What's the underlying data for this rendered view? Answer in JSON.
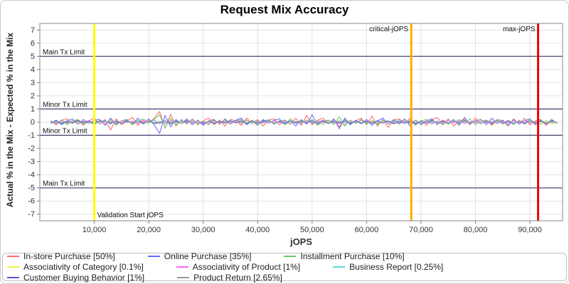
{
  "title": "Request Mix Accuracy",
  "chart_data": {
    "type": "line",
    "title": "Request Mix Accuracy",
    "xlabel": "jOPS",
    "ylabel": "Actual % in the Mix - Expected % in the Mix",
    "xlim": [
      0,
      96000
    ],
    "ylim": [
      -7.5,
      7.5
    ],
    "grid": true,
    "legend_position": "bottom",
    "x_ticks": [
      10000,
      20000,
      30000,
      40000,
      50000,
      60000,
      70000,
      80000,
      90000
    ],
    "y_ticks": [
      -7,
      -6,
      -5,
      -4,
      -3,
      -2,
      -1,
      0,
      1,
      2,
      3,
      4,
      5,
      6,
      7
    ],
    "h_markers": [
      {
        "label": "Main Tx Limit",
        "y": 5,
        "color": "#3b3b6b"
      },
      {
        "label": "Minor Tx Limit",
        "y": 1,
        "color": "#3b3b6b"
      },
      {
        "label": "Minor Tx Limit",
        "y": -1,
        "color": "#3b3b6b"
      },
      {
        "label": "Main Tx Limit",
        "y": -5,
        "color": "#3b3b6b"
      }
    ],
    "v_markers": [
      {
        "label": "Validation Start jOPS",
        "x": 10000,
        "color": "#ffff00",
        "label_pos": "bottom-right"
      },
      {
        "label": "critical-jOPS",
        "x": 68200,
        "color": "#ffaa00",
        "label_pos": "top-left"
      },
      {
        "label": "max-jOPS",
        "x": 91500,
        "color": "#ee0000",
        "label_pos": "top-left"
      }
    ],
    "x": [
      2000,
      3000,
      4000,
      5000,
      6000,
      7000,
      8000,
      9000,
      10000,
      11000,
      12000,
      13000,
      14000,
      15000,
      16000,
      17000,
      18000,
      19000,
      20000,
      21000,
      22000,
      23000,
      24000,
      25000,
      26000,
      27000,
      28000,
      29000,
      30000,
      31000,
      32000,
      33000,
      34000,
      35000,
      36000,
      37000,
      38000,
      39000,
      40000,
      41000,
      42000,
      43000,
      44000,
      45000,
      46000,
      47000,
      48000,
      49000,
      50000,
      51000,
      52000,
      53000,
      54000,
      55000,
      56000,
      57000,
      58000,
      59000,
      60000,
      61000,
      62000,
      63000,
      64000,
      65000,
      66000,
      67000,
      68000,
      69000,
      70000,
      71000,
      72000,
      73000,
      74000,
      75000,
      76000,
      77000,
      78000,
      79000,
      80000,
      81000,
      82000,
      83000,
      84000,
      85000,
      86000,
      87000,
      88000,
      89000,
      90000,
      91000,
      92000,
      93000,
      94000,
      95000
    ],
    "series": [
      {
        "name": "In-store Purchase [50%]",
        "color": "#ff6666",
        "values": [
          0.1,
          -0.2,
          0.15,
          0.25,
          -0.1,
          0.2,
          -0.25,
          0.1,
          0.3,
          -0.15,
          0.2,
          -0.6,
          0.25,
          -0.2,
          0.1,
          0.35,
          -0.25,
          0.15,
          -0.1,
          0.3,
          0.8,
          -0.45,
          0.6,
          -0.3,
          0.2,
          -0.15,
          0.25,
          -0.2,
          0.1,
          0.3,
          -0.2,
          0.15,
          -0.3,
          0.2,
          0.1,
          -0.25,
          0.3,
          -0.1,
          0.2,
          -0.3,
          0.15,
          0.25,
          -0.2,
          0.1,
          -0.15,
          0.3,
          -0.25,
          0.5,
          -0.2,
          0.15,
          0.3,
          -0.1,
          0.2,
          -0.35,
          0.25,
          -0.15,
          0.1,
          0.3,
          -0.2,
          0.45,
          -0.3,
          0.2,
          -0.4,
          0.15,
          0.25,
          -0.1,
          0.3,
          -0.2,
          0.1,
          -0.25,
          0.2,
          0.35,
          -0.15,
          0.25,
          -0.3,
          0.1,
          0.2,
          -0.2,
          0.3,
          -0.1,
          0.15,
          -0.25,
          0.2,
          0.1,
          -0.3,
          0.25,
          -0.15,
          0.3,
          -0.2,
          0.1,
          0.2,
          -0.25,
          0.15,
          -0.1
        ]
      },
      {
        "name": "Online Purchase [35%]",
        "color": "#6666ff",
        "values": [
          -0.1,
          0.15,
          -0.2,
          0.1,
          0.25,
          -0.15,
          0.2,
          -0.1,
          0.15,
          0.2,
          -0.25,
          0.3,
          -0.15,
          0.1,
          0.2,
          -0.2,
          0.3,
          -0.1,
          0.25,
          -0.2,
          -0.85,
          0.5,
          -0.35,
          0.2,
          -0.1,
          0.25,
          -0.2,
          0.15,
          -0.25,
          0.1,
          0.2,
          -0.15,
          0.25,
          -0.1,
          0.15,
          0.3,
          -0.2,
          0.1,
          -0.25,
          0.2,
          -0.1,
          0.15,
          0.25,
          -0.2,
          0.1,
          -0.3,
          0.2,
          -0.15,
          0.55,
          -0.2,
          0.15,
          -0.1,
          0.25,
          -0.5,
          0.3,
          -0.2,
          0.15,
          -0.1,
          0.2,
          -0.25,
          0.1,
          0.3,
          -0.15,
          0.2,
          -0.1,
          0.25,
          -0.3,
          0.15,
          -0.2,
          0.1,
          0.25,
          -0.2,
          0.15,
          -0.1,
          0.2,
          -0.25,
          0.35,
          -0.15,
          0.1,
          0.2,
          -0.2,
          0.3,
          -0.1,
          0.15,
          -0.25,
          0.2,
          -0.15,
          0.1,
          0.25,
          -0.2,
          0.1,
          -0.15,
          0.2,
          -0.1
        ]
      },
      {
        "name": "Installment Purchase [10%]",
        "color": "#66cc66",
        "values": [
          0.05,
          -0.1,
          0.15,
          -0.2,
          0.1,
          0.2,
          -0.15,
          0.05,
          -0.2,
          0.15,
          -0.1,
          0.2,
          -0.25,
          0.1,
          0.15,
          -0.2,
          0.05,
          0.25,
          -0.1,
          0.2,
          0.55,
          -0.4,
          0.3,
          -0.2,
          0.15,
          -0.1,
          0.2,
          -0.15,
          0.1,
          -0.2,
          0.15,
          -0.05,
          0.2,
          -0.15,
          0.1,
          0.2,
          -0.1,
          0.15,
          -0.2,
          0.05,
          0.2,
          -0.15,
          0.1,
          -0.2,
          0.25,
          -0.1,
          0.15,
          -0.05,
          0.2,
          -0.25,
          0.1,
          0.15,
          -0.2,
          0.4,
          -0.3,
          0.15,
          -0.1,
          0.2,
          -0.15,
          0.1,
          -0.2,
          0.15,
          0.05,
          -0.15,
          0.2,
          -0.1,
          0.15,
          -0.25,
          0.1,
          0.2,
          -0.15,
          0.1,
          -0.2,
          0.15,
          -0.05,
          0.2,
          -0.1,
          0.25,
          -0.2,
          0.1,
          0.15,
          -0.1,
          0.2,
          -0.15,
          0.05,
          -0.2,
          0.15,
          -0.1,
          0.2,
          -0.05,
          -0.15,
          0.1,
          -0.1,
          0.05
        ]
      },
      {
        "name": "Associativity of Category [0.1%]",
        "color": "#eeee44",
        "values": [
          0.02,
          -0.03,
          0.04,
          -0.02,
          0.03,
          -0.04,
          0.02,
          0.05,
          -0.03,
          0.02,
          -0.05,
          0.03,
          -0.02,
          0.04,
          -0.03,
          0.02,
          -0.04,
          0.05,
          -0.02,
          0.03,
          -0.03,
          0.04,
          -0.05,
          0.02,
          -0.02,
          0.03,
          -0.04,
          0.02,
          0.05,
          -0.03,
          0.02,
          -0.04,
          0.03,
          -0.02,
          0.05,
          -0.03,
          0.02,
          -0.05,
          0.04,
          -0.02,
          0.03,
          -0.02,
          0.04,
          -0.03,
          0.02,
          -0.04,
          0.03,
          0.05,
          -0.02,
          0.03,
          -0.04,
          0.02,
          -0.03,
          0.05,
          -0.02,
          0.04,
          -0.05,
          0.03,
          -0.02,
          0.04,
          -0.03,
          0.02,
          0.04,
          -0.05,
          0.03,
          -0.02,
          0.05,
          -0.04,
          0.02,
          -0.03,
          0.04,
          -0.02,
          0.03,
          -0.04,
          0.05,
          -0.03,
          0.02,
          -0.05,
          0.03,
          -0.02,
          0.04,
          -0.03,
          0.02,
          -0.04,
          0.03,
          -0.02,
          0.04,
          -0.05,
          0.02,
          0.03,
          -0.02,
          0.04,
          -0.03,
          0.02
        ]
      },
      {
        "name": "Associativity of Product [1%]",
        "color": "#ff66ff",
        "values": [
          0.05,
          -0.08,
          0.1,
          -0.05,
          0.08,
          -0.1,
          0.05,
          0.1,
          -0.08,
          0.06,
          -0.1,
          0.08,
          -0.06,
          0.1,
          -0.05,
          0.08,
          -0.1,
          0.06,
          0.1,
          -0.08,
          0.05,
          -0.1,
          0.12,
          -0.06,
          0.08,
          -0.05,
          0.1,
          -0.08,
          0.05,
          -0.12,
          0.08,
          -0.05,
          0.1,
          -0.08,
          0.06,
          0.1,
          -0.06,
          0.08,
          -0.1,
          0.05,
          -0.08,
          0.1,
          -0.05,
          0.08,
          -0.12,
          0.06,
          -0.08,
          0.1,
          -0.06,
          0.08,
          0.12,
          -0.08,
          0.05,
          -0.1,
          0.08,
          -0.06,
          0.1,
          -0.05,
          0.08,
          -0.1,
          0.06,
          -0.08,
          0.1,
          -0.12,
          0.05,
          0.08,
          -0.06,
          0.1,
          -0.08,
          0.06,
          -0.1,
          0.05,
          -0.08,
          0.12,
          -0.05,
          0.08,
          -0.1,
          0.06,
          -0.08,
          0.1,
          -0.06,
          0.08,
          -0.1,
          0.05,
          -0.08,
          0.1,
          -0.05,
          0.12,
          -0.08,
          0.06,
          0.08,
          -0.1,
          0.06,
          -0.05
        ]
      },
      {
        "name": "Business Report [0.25%]",
        "color": "#55dddd",
        "values": [
          -0.02,
          0.04,
          -0.05,
          0.03,
          -0.04,
          0.05,
          -0.03,
          0.04,
          -0.06,
          0.03,
          0.05,
          -0.04,
          0.06,
          -0.03,
          0.04,
          -0.05,
          0.03,
          -0.06,
          0.04,
          -0.03,
          0.06,
          -0.05,
          0.04,
          -0.06,
          0.03,
          0.05,
          -0.04,
          0.06,
          -0.03,
          0.05,
          -0.06,
          0.04,
          -0.05,
          0.06,
          -0.04,
          0.03,
          -0.05,
          0.04,
          0.06,
          -0.04,
          0.05,
          -0.06,
          0.03,
          -0.04,
          0.06,
          -0.05,
          0.04,
          -0.03,
          0.05,
          -0.06,
          0.04,
          -0.05,
          0.06,
          -0.03,
          0.04,
          -0.06,
          0.05,
          -0.04,
          0.03,
          -0.05,
          0.06,
          -0.04,
          0.05,
          -0.06,
          0.04,
          -0.03,
          0.05,
          -0.04,
          0.06,
          -0.05,
          0.03,
          -0.06,
          0.04,
          -0.05,
          0.06,
          -0.04,
          0.05,
          -0.03,
          0.04,
          -0.06,
          0.05,
          -0.04,
          0.03,
          -0.05,
          0.06,
          -0.04,
          0.05,
          -0.06,
          0.03,
          -0.04,
          0.05,
          -0.03,
          0.04,
          -0.05
        ]
      },
      {
        "name": "Customer Buying Behavior [1%]",
        "color": "#5555dd",
        "values": [
          -0.06,
          0.09,
          -0.1,
          0.06,
          -0.08,
          0.1,
          -0.06,
          0.08,
          -0.1,
          0.07,
          0.1,
          -0.08,
          0.06,
          -0.1,
          0.08,
          -0.06,
          0.1,
          -0.07,
          0.08,
          -0.1,
          -0.05,
          0.1,
          -0.08,
          0.06,
          -0.1,
          0.08,
          -0.06,
          0.1,
          -0.08,
          0.07,
          -0.1,
          0.06,
          -0.08,
          0.1,
          -0.06,
          0.08,
          -0.1,
          0.07,
          -0.06,
          0.1,
          0.08,
          -0.1,
          0.06,
          -0.08,
          0.1,
          -0.07,
          0.08,
          -0.06,
          0.1,
          -0.08,
          0.06,
          -0.1,
          0.08,
          -0.06,
          0.1,
          -0.08,
          0.07,
          -0.1,
          0.06,
          -0.08,
          0.1,
          -0.06,
          0.08,
          -0.1,
          0.07,
          -0.08,
          0.06,
          -0.1,
          0.08,
          -0.07,
          0.1,
          -0.08,
          0.06,
          -0.1,
          0.08,
          -0.06,
          0.1,
          -0.08,
          0.07,
          -0.1,
          0.06,
          -0.08,
          0.1,
          -0.07,
          0.08,
          -0.1,
          0.06,
          -0.08,
          0.1,
          -0.06,
          0.08,
          -0.1,
          0.07,
          -0.06
        ]
      },
      {
        "name": "Product Return [2.65%]",
        "color": "#999999",
        "values": [
          0.08,
          -0.12,
          0.15,
          -0.1,
          0.12,
          -0.15,
          0.08,
          -0.1,
          0.15,
          -0.12,
          0.1,
          -0.15,
          0.12,
          -0.08,
          0.15,
          -0.1,
          0.12,
          -0.15,
          0.1,
          0.15,
          -0.12,
          0.1,
          -0.15,
          0.12,
          -0.1,
          0.15,
          -0.08,
          0.12,
          -0.15,
          0.1,
          0.15,
          -0.1,
          0.08,
          -0.15,
          0.12,
          -0.1,
          0.15,
          -0.12,
          0.1,
          -0.08,
          0.12,
          -0.15,
          0.1,
          0.15,
          -0.12,
          0.08,
          -0.1,
          0.15,
          -0.12,
          0.1,
          -0.15,
          0.12,
          -0.08,
          0.1,
          -0.15,
          0.12,
          -0.1,
          0.15,
          -0.08,
          0.12,
          -0.1,
          0.15,
          -0.12,
          0.08,
          -0.15,
          0.1,
          -0.12,
          0.15,
          -0.1,
          0.12,
          0.15,
          -0.08,
          0.12,
          -0.15,
          0.1,
          -0.12,
          0.15,
          -0.1,
          0.08,
          -0.12,
          0.1,
          -0.15,
          0.12,
          -0.1,
          0.15,
          -0.12,
          0.08,
          -0.15,
          0.1,
          -0.12,
          0.15,
          -0.1,
          0.12,
          -0.08
        ]
      }
    ],
    "colors": {
      "grid": "#e2e2e2",
      "plot_border": "#8a8a8a",
      "tick_label": "#333333",
      "marker_label": "#111111",
      "axis_title": "#333333"
    }
  }
}
